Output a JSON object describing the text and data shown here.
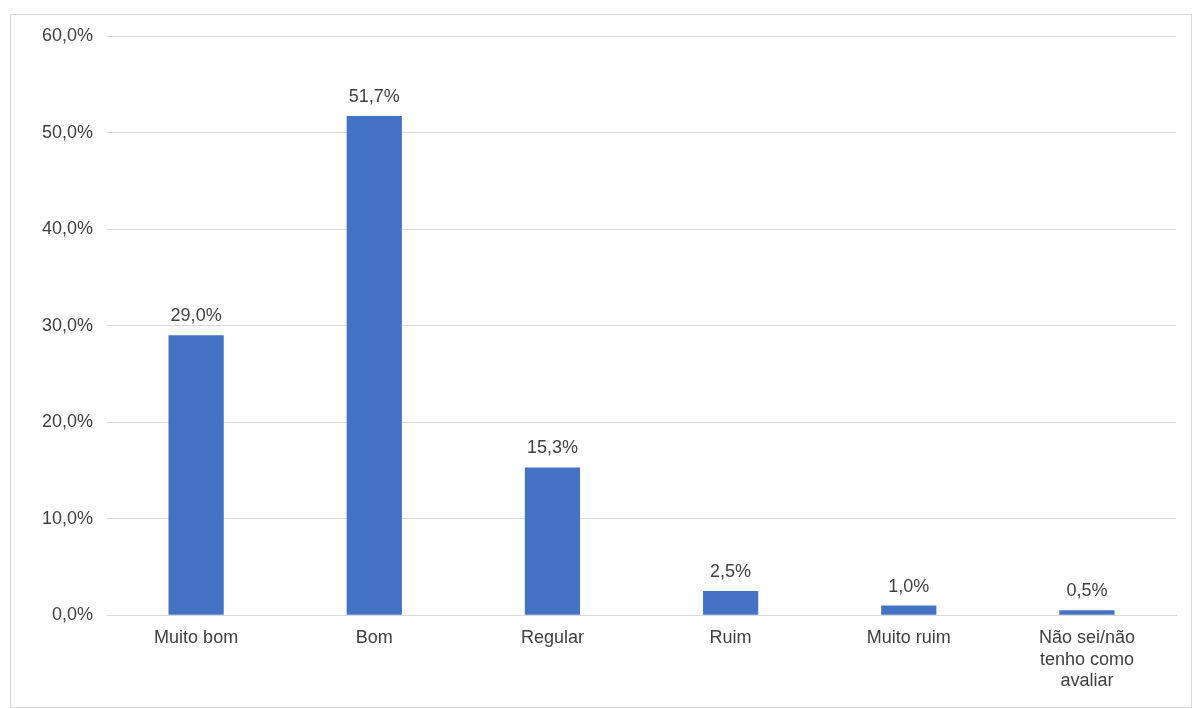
{
  "chart_data": {
    "type": "bar",
    "categories": [
      "Muito bom",
      "Bom",
      "Regular",
      "Ruim",
      "Muito ruim",
      "Não sei/não tenho como avaliar"
    ],
    "values": [
      29.0,
      51.7,
      15.3,
      2.5,
      1.0,
      0.5
    ],
    "value_labels": [
      "29,0%",
      "51,7%",
      "15,3%",
      "2,5%",
      "1,0%",
      "0,5%"
    ],
    "color": "#4472c4",
    "ylim": [
      0,
      60
    ],
    "yticks": [
      {
        "value": 0,
        "label": "0,0%"
      },
      {
        "value": 10,
        "label": "10,0%"
      },
      {
        "value": 20,
        "label": "20,0%"
      },
      {
        "value": 30,
        "label": "30,0%"
      },
      {
        "value": 40,
        "label": "40,0%"
      },
      {
        "value": 50,
        "label": "50,0%"
      },
      {
        "value": 60,
        "label": "60,0%"
      }
    ],
    "grid": "y",
    "legend": false
  }
}
